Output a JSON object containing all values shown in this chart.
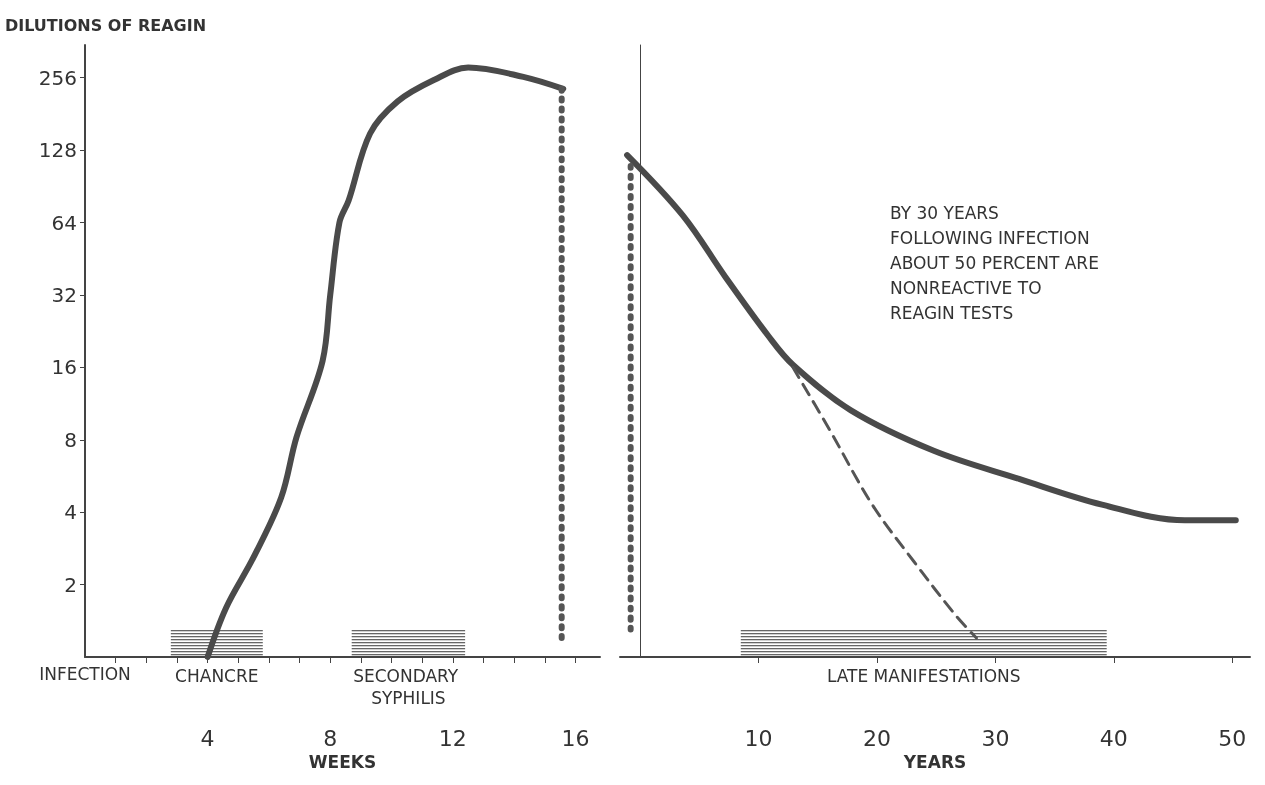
{
  "chart_data": [
    {
      "type": "line",
      "xlabel": "WEEKS",
      "ylabel": "DILUTIONS OF REAGIN",
      "log": "y",
      "grid": false,
      "marker": "none",
      "xlim": [
        0,
        16.8
      ],
      "xticks": [
        {
          "value": 1,
          "label": null
        },
        {
          "value": 2,
          "label": null
        },
        {
          "value": 3,
          "label": null
        },
        4,
        {
          "value": 5,
          "label": null
        },
        {
          "value": 6,
          "label": null
        },
        {
          "value": 7,
          "label": null
        },
        8,
        {
          "value": 9,
          "label": null
        },
        {
          "value": 10,
          "label": null
        },
        {
          "value": 11,
          "label": null
        },
        12,
        {
          "value": 13,
          "label": null
        },
        {
          "value": 14,
          "label": null
        },
        {
          "value": 15,
          "label": null
        },
        16
      ],
      "ylim": [
        1,
        350
      ],
      "yticks": [
        2,
        4,
        8,
        16,
        32,
        64,
        128,
        256
      ],
      "series": [
        {
          "type": "line",
          "color": "#4a4a4a",
          "line_style": "solid",
          "x": [
            4,
            4.6,
            5.5,
            6.4,
            6.9,
            7.75,
            8.0,
            8.3,
            8.6,
            9.3,
            10.2,
            11.4,
            12.5,
            14.3,
            15.6
          ],
          "values": [
            1,
            1.6,
            2.6,
            4.6,
            8.2,
            17,
            32,
            64,
            79,
            150,
            204,
            251,
            282,
            258,
            230
          ]
        },
        {
          "type": "line",
          "color": "#555555",
          "line_style": "dotted",
          "x": [
            15.55,
            15.55
          ],
          "values": [
            230,
            1.2
          ]
        }
      ],
      "bands": [
        {
          "axis": "x",
          "from": 2.8,
          "to": 5.8,
          "label": "CHANCRE",
          "color": "#555555"
        },
        {
          "axis": "x",
          "from": 8.7,
          "to": 12.4,
          "label": "SECONDARY SYPHILIS",
          "color": "#555555"
        }
      ],
      "annotations": [
        "INFECTION"
      ]
    },
    {
      "type": "line",
      "xlabel": "YEARS",
      "log": "y",
      "grid": false,
      "marker": "none",
      "tick_labels": "x",
      "xlim": [
        -1.7,
        51.5
      ],
      "xticks": [
        10,
        20,
        30,
        40,
        50
      ],
      "ylim": [
        1,
        350
      ],
      "yticks": [
        2,
        4,
        8,
        16,
        32,
        64,
        128,
        256
      ],
      "series": [
        {
          "type": "line",
          "color": "#4a4a4a",
          "line_style": "solid",
          "x": [
            -1.1,
            3.6,
            7.2,
            10.8,
            12.9,
            17.8,
            24.8,
            32,
            39,
            46,
            50.3
          ],
          "values": [
            122,
            68.5,
            38,
            21.7,
            16.4,
            10.6,
            7.2,
            5.5,
            4.3,
            3.7,
            3.7
          ]
        },
        {
          "type": "line",
          "color": "#555555",
          "line_style": "dashed",
          "x": [
            12.9,
            16.0,
            19.6,
            23.1,
            26.6,
            28.4
          ],
          "values": [
            16,
            8.8,
            4.3,
            2.5,
            1.5,
            1.2
          ]
        },
        {
          "type": "line",
          "color": "#555555",
          "line_style": "dotted",
          "x": [
            -0.8,
            -0.8
          ],
          "values": [
            110,
            1.3
          ]
        }
      ],
      "bands": [
        {
          "axis": "x",
          "from": 8.5,
          "to": 39.4,
          "label": "LATE MANIFESTATIONS",
          "color": "#555555"
        }
      ],
      "annotations": [
        "BY 30 YEARS\nFOLLOWING INFECTION\nABOUT 50 PERCENT ARE\nNONREACTIVE TO\nREAGIN TESTS"
      ]
    }
  ]
}
